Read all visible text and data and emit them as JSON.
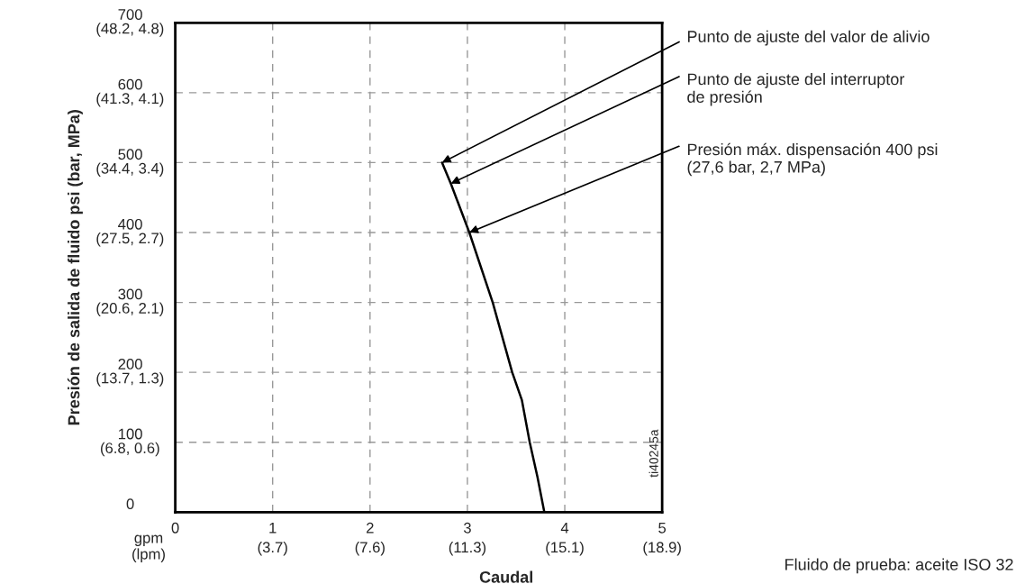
{
  "chart_data": {
    "type": "line",
    "xlabel": "Caudal",
    "ylabel": "Presión de salida de fluido psi (bar, MPa)",
    "series": [
      {
        "color": "#000000",
        "x": [
          3.79,
          3.72,
          3.64,
          3.56,
          3.46,
          3.26,
          3.02,
          2.83,
          2.74
        ],
        "values": [
          0,
          50,
          100,
          160,
          200,
          300,
          400,
          470,
          500
        ]
      }
    ],
    "xlim": [
      0,
      5
    ],
    "ylim": [
      0,
      700
    ],
    "xticks": [
      0,
      1,
      2,
      3,
      4,
      5
    ],
    "yticks": [
      0,
      100,
      200,
      300,
      400,
      500,
      600,
      700
    ],
    "grid": true,
    "marker": "none",
    "line_style": "solid",
    "legend": false,
    "annotations": [
      {
        "text": "Punto de ajuste del valor de alivio",
        "x": 2.74,
        "y": 500
      },
      {
        "text": "Punto de ajuste del interruptor\nde presión",
        "x": 2.83,
        "y": 470
      },
      {
        "text": "Presión máx. dispensación 400 psi\n(27,6 bar, 2,7 MPa)",
        "x": 3.02,
        "y": 400
      },
      "(3.7)",
      "(7.6)",
      "(11.3)",
      "(15.1)",
      "(18.9)",
      "(6.8, 0.6)",
      "(13.7, 1.3)",
      "(20.6, 2.1)",
      "(27.5, 2.7)",
      "(34.4, 3.4)",
      "(41.3, 4.1)",
      "(48.2, 4.8)",
      "gpm\n(lpm)",
      "Fluido de prueba: aceite ISO 32",
      "ti40245a"
    ]
  }
}
